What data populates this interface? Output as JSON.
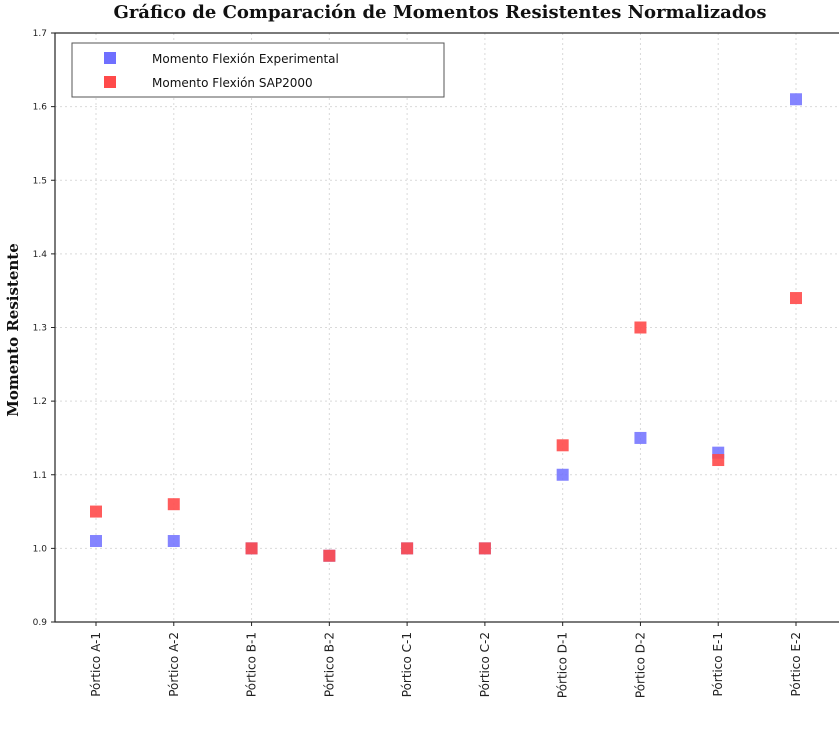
{
  "chart_data": {
    "type": "scatter",
    "title": "Gráfico de Comparación de Momentos Resistentes Normalizados",
    "xlabel": "",
    "ylabel": "Momento Resistente",
    "categories": [
      "Pórtico A-1",
      "Pórtico A-2",
      "Pórtico B-1",
      "Pórtico B-2",
      "Pórtico C-1",
      "Pórtico C-2",
      "Pórtico D-1",
      "Pórtico D-2",
      "Pórtico E-1",
      "Pórtico E-2"
    ],
    "ylim": [
      0.9,
      1.7
    ],
    "yticks": [
      "0.9",
      "1.0",
      "1.1",
      "1.2",
      "1.3",
      "1.4",
      "1.5",
      "1.6",
      "1.7"
    ],
    "grid": true,
    "legend_position": "top-left",
    "series": [
      {
        "name": "Momento Flexión Experimental",
        "color": "#6f6fff",
        "values": [
          1.01,
          1.01,
          1.0,
          0.99,
          1.0,
          1.0,
          1.1,
          1.15,
          1.13,
          1.61
        ]
      },
      {
        "name": "Momento Flexión SAP2000",
        "color": "#ff4a4a",
        "values": [
          1.05,
          1.06,
          1.0,
          0.99,
          1.0,
          1.0,
          1.14,
          1.3,
          1.12,
          1.34
        ]
      }
    ]
  }
}
